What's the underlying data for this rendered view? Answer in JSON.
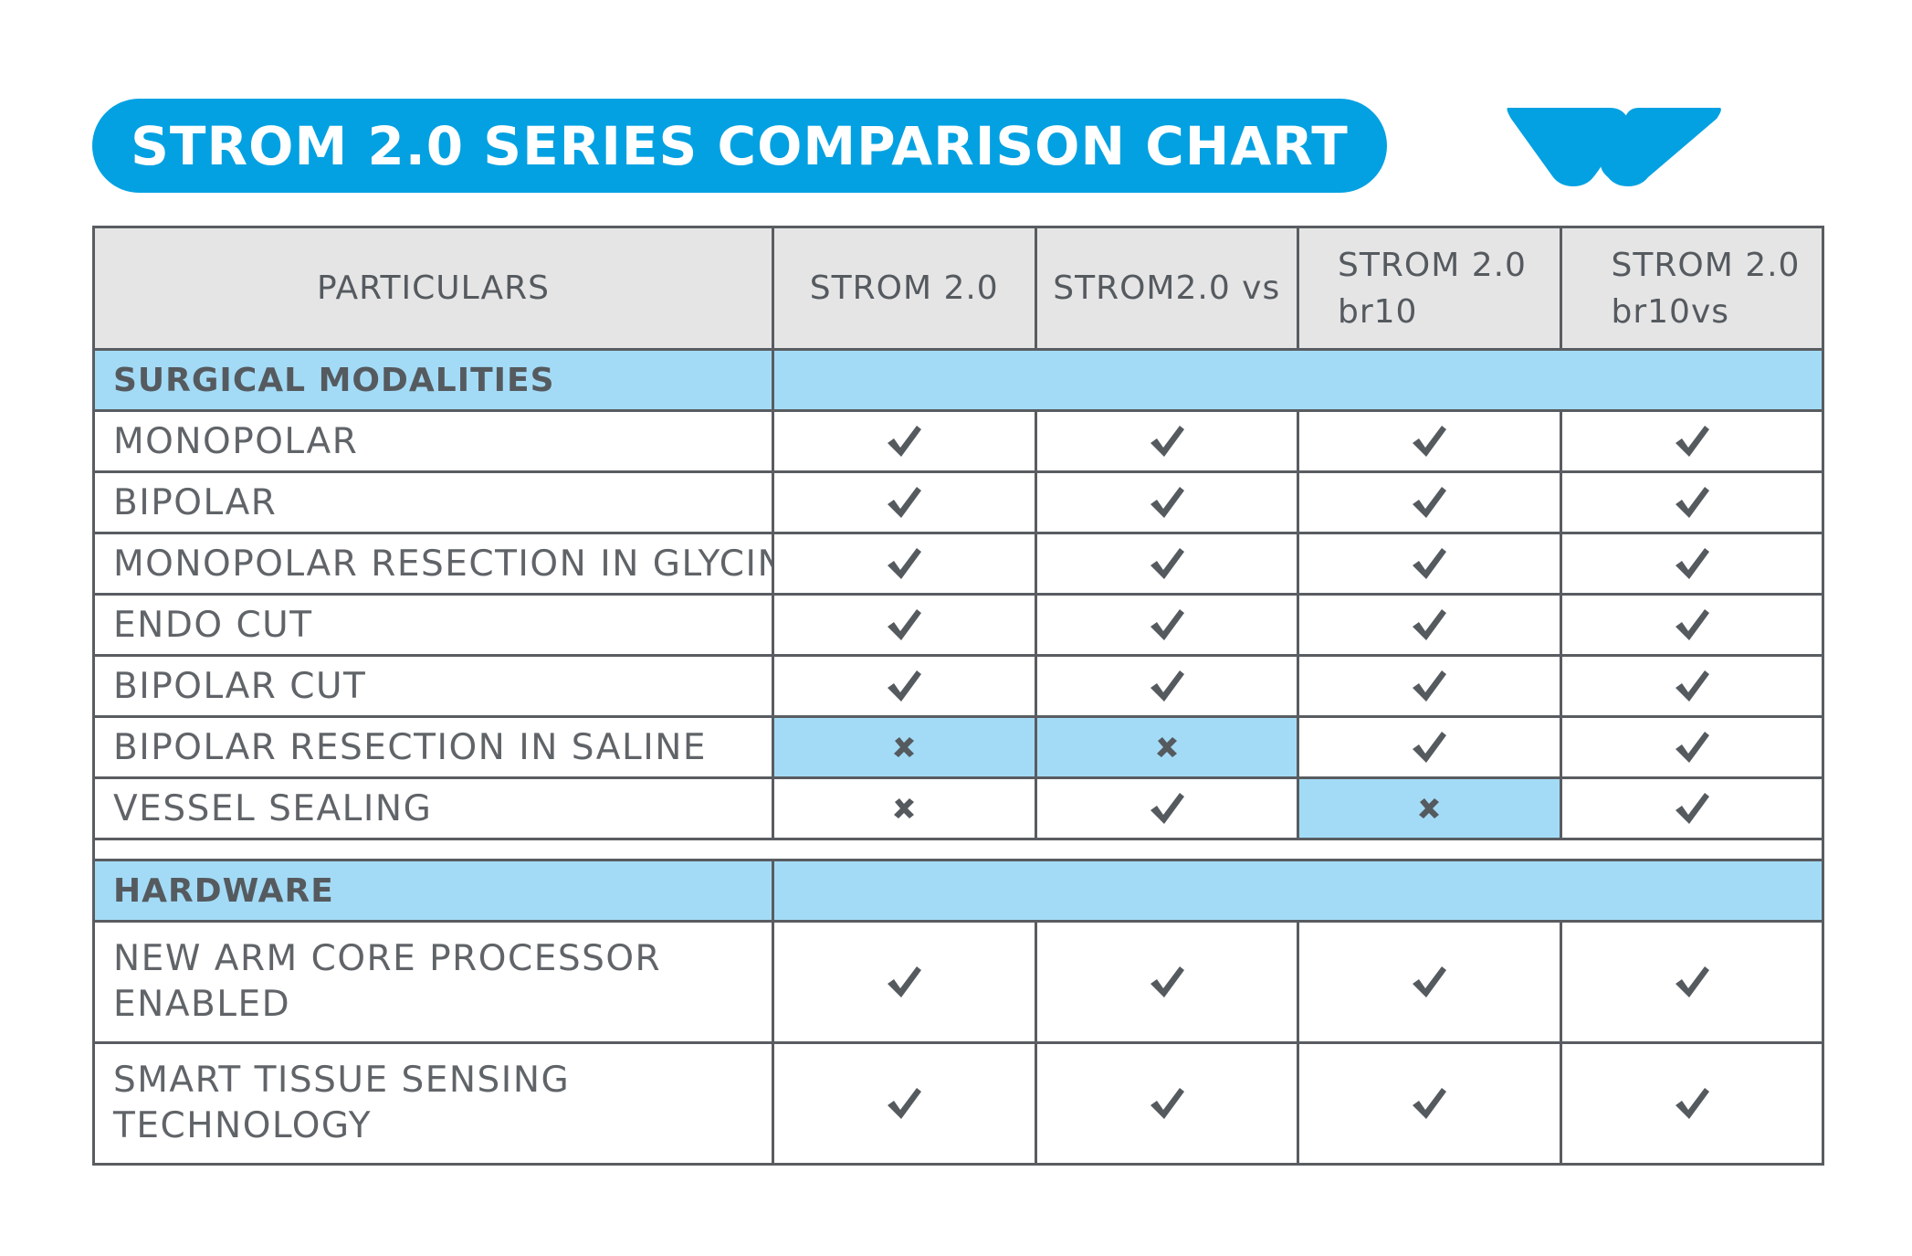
{
  "title": "STROM 2.0 SERIES COMPARISON CHART",
  "logo_icon": "brand-wave-logo",
  "colors": {
    "brand_blue": "#03a1e2",
    "highlight_blue": "#a3dbf6",
    "header_gray": "#e5e5e6",
    "border": "#595c60",
    "text": "#555a5f"
  },
  "table": {
    "header": {
      "particulars": "PARTICULARS",
      "models": [
        {
          "line1": "STROM 2.0",
          "line2": ""
        },
        {
          "line1": "STROM2.0 vs",
          "line2": ""
        },
        {
          "line1": "STROM 2.0",
          "line2": "br10"
        },
        {
          "line1": "STROM 2.0",
          "line2": "br10vs"
        }
      ]
    },
    "sections": [
      {
        "title": "SURGICAL MODALITIES",
        "rows": [
          {
            "label": "MONOPOLAR",
            "values": [
              "check",
              "check",
              "check",
              "check"
            ],
            "highlight": [
              false,
              false,
              false,
              false
            ]
          },
          {
            "label": "BIPOLAR",
            "values": [
              "check",
              "check",
              "check",
              "check"
            ],
            "highlight": [
              false,
              false,
              false,
              false
            ]
          },
          {
            "label": "MONOPOLAR RESECTION IN GLYCINE",
            "values": [
              "check",
              "check",
              "check",
              "check"
            ],
            "highlight": [
              false,
              false,
              false,
              false
            ]
          },
          {
            "label": "ENDO CUT",
            "values": [
              "check",
              "check",
              "check",
              "check"
            ],
            "highlight": [
              false,
              false,
              false,
              false
            ]
          },
          {
            "label": "BIPOLAR CUT",
            "values": [
              "check",
              "check",
              "check",
              "check"
            ],
            "highlight": [
              false,
              false,
              false,
              false
            ]
          },
          {
            "label": "BIPOLAR RESECTION IN SALINE",
            "values": [
              "cross",
              "cross",
              "check",
              "check"
            ],
            "highlight": [
              true,
              true,
              false,
              false
            ]
          },
          {
            "label": "VESSEL SEALING",
            "values": [
              "cross",
              "check",
              "cross",
              "check"
            ],
            "highlight": [
              false,
              false,
              true,
              false
            ]
          }
        ]
      },
      {
        "title": "HARDWARE",
        "rows": [
          {
            "label_line1": "NEW ARM CORE PROCESSOR",
            "label_line2": "ENABLED",
            "values": [
              "check",
              "check",
              "check",
              "check"
            ],
            "highlight": [
              false,
              false,
              false,
              false
            ]
          },
          {
            "label_line1": "SMART TISSUE SENSING",
            "label_line2": "TECHNOLOGY",
            "values": [
              "check",
              "check",
              "check",
              "check"
            ],
            "highlight": [
              false,
              false,
              false,
              false
            ]
          }
        ]
      }
    ]
  }
}
